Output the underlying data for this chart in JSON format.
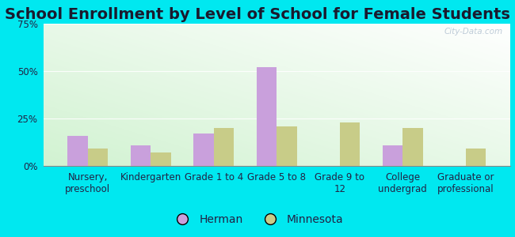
{
  "title": "School Enrollment by Level of School for Female Students",
  "categories": [
    "Nursery,\npreschool",
    "Kindergarten",
    "Grade 1 to 4",
    "Grade 5 to 8",
    "Grade 9 to\n12",
    "College\nundergrad",
    "Graduate or\nprofessional"
  ],
  "herman_values": [
    16,
    11,
    17,
    52,
    0,
    11,
    0
  ],
  "minnesota_values": [
    9,
    7,
    20,
    21,
    23,
    20,
    9
  ],
  "herman_color": "#c9a0dc",
  "minnesota_color": "#c8cc88",
  "ylim": [
    0,
    75
  ],
  "yticks": [
    0,
    25,
    50,
    75
  ],
  "ytick_labels": [
    "0%",
    "25%",
    "50%",
    "75%"
  ],
  "background_color": "#00e8f0",
  "title_fontsize": 14,
  "axis_label_fontsize": 8.5,
  "legend_fontsize": 10,
  "bar_width": 0.32,
  "watermark": "City-Data.com",
  "legend_herman": "Herman",
  "legend_minnesota": "Minnesota"
}
